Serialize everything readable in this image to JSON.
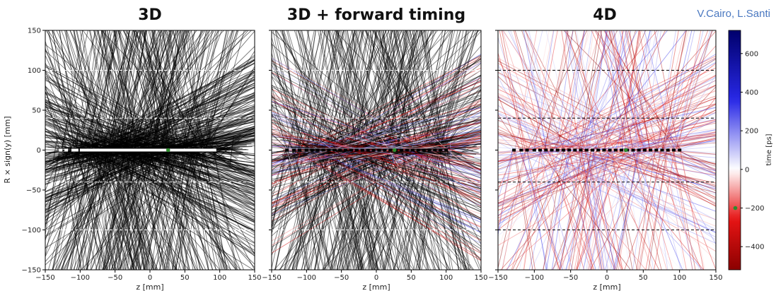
{
  "credit": "V.Cairo, L.Santi",
  "colorbar": {
    "label": "time [ps]",
    "ticks": [
      600,
      400,
      200,
      0,
      -200,
      -400
    ],
    "range": [
      -520,
      720
    ],
    "marker_value": -200,
    "low_color": "#8b0000",
    "mid_color": "#ffffff",
    "high_color": "#00006b"
  },
  "chart_data": [
    {
      "type": "line",
      "title": "3D",
      "xlabel": "z [mm]",
      "ylabel": "R × sign(y) [mm]",
      "xlim": [
        -150,
        150
      ],
      "ylim": [
        -150,
        150
      ],
      "xticks": [
        -150,
        -100,
        -50,
        0,
        50,
        100,
        150
      ],
      "yticks": [
        150,
        100,
        50,
        0,
        -50,
        -100,
        -150
      ],
      "reference_lines_y": [
        100,
        40,
        -40,
        -100
      ],
      "reference_line_color": "#ffffff",
      "track_color": "#000000",
      "vertex_color": "#ffffff",
      "vertices_z": [
        -128,
        -120,
        -110,
        -105,
        -98,
        -94,
        -90,
        -86,
        -82,
        -78,
        -75,
        -70,
        -66,
        -62,
        -58,
        -54,
        -50,
        -46,
        -42,
        -38,
        -34,
        -30,
        -26,
        -22,
        -18,
        -14,
        -10,
        -6,
        -2,
        2,
        6,
        10,
        14,
        18,
        22,
        26,
        30,
        34,
        38,
        42,
        46,
        50,
        56,
        62,
        68,
        74,
        80,
        90
      ],
      "primary_vertex_z": 26,
      "primary_vertex_color": "#2e8b2e"
    },
    {
      "type": "line",
      "title": "3D + forward timing",
      "xlabel": "z [mm]",
      "xlim": [
        -150,
        150
      ],
      "ylim": [
        -150,
        150
      ],
      "xticks": [
        -150,
        -100,
        -50,
        0,
        50,
        100,
        150
      ],
      "yticks": [
        150,
        100,
        50,
        0,
        -50,
        -100,
        -150
      ],
      "reference_lines_y": [
        100,
        40,
        -40,
        -100
      ],
      "reference_line_color": "#ffffff",
      "track_color": "#000000",
      "vertex_color": "#000000",
      "vertices_z": [
        -128,
        -118,
        -110,
        -100,
        -92,
        -84,
        -76,
        -68,
        -60,
        -52,
        -44,
        -36,
        -28,
        -20,
        -12,
        -4,
        4,
        12,
        20,
        28,
        36,
        44,
        52,
        60,
        68,
        76,
        84,
        92,
        100
      ],
      "primary_vertex_z": 26,
      "primary_vertex_color": "#2e8b2e"
    },
    {
      "type": "line",
      "title": "4D",
      "xlabel": "z [mm]",
      "xlim": [
        -150,
        150
      ],
      "ylim": [
        -150,
        150
      ],
      "xticks": [
        -150,
        -100,
        -50,
        0,
        50,
        100,
        150
      ],
      "yticks": [
        150,
        100,
        50,
        0,
        -50,
        -100,
        -150
      ],
      "reference_lines_y": [
        100,
        40,
        -40,
        -100
      ],
      "reference_line_color": "#000000",
      "vertex_color": "#000000",
      "vertices_z": [
        -128,
        -118,
        -110,
        -100,
        -92,
        -84,
        -76,
        -68,
        -60,
        -52,
        -44,
        -36,
        -28,
        -20,
        -12,
        -4,
        4,
        12,
        20,
        28,
        36,
        44,
        52,
        60,
        68,
        76,
        84,
        92,
        100
      ],
      "primary_vertex_z": 26,
      "primary_vertex_color": "#2e8b2e"
    }
  ]
}
